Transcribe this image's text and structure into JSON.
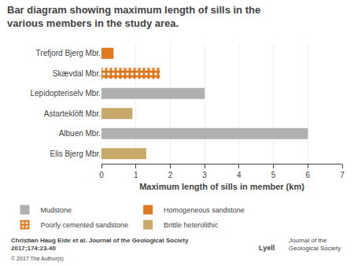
{
  "chart_data": {
    "type": "bar",
    "orientation": "horizontal",
    "title": "Bar diagram showing maximum length of sills in the various members in the study area.",
    "xlabel": "Maximum length of sills in member (km)",
    "categories": [
      "Trefjord Bjerg Mbr.",
      "Skævdal Mbr.",
      "Lepidopteriselv Mbr.",
      "Astarteklöft Mbr.",
      "Albuen Mbr.",
      "Elis Bjerg Mbr."
    ],
    "series": [
      {
        "name": "Mudstone",
        "color": "#B0B0B0",
        "values": [
          null,
          null,
          3.0,
          null,
          6.0,
          null
        ]
      },
      {
        "name": "Homogeneous sandstone",
        "color": "#E07820",
        "values": [
          0.35,
          null,
          null,
          null,
          null,
          null
        ]
      },
      {
        "name": "Poorly cemented sandstone",
        "color": "#E07820",
        "marker": "dots",
        "values": [
          null,
          1.7,
          null,
          null,
          null,
          null
        ]
      },
      {
        "name": "Brittle heterolithic",
        "color": "#C8A96A",
        "values": [
          null,
          null,
          null,
          0.9,
          null,
          1.3
        ]
      }
    ],
    "xlim": [
      0,
      7
    ],
    "xticks": [
      0,
      1,
      2,
      3,
      4,
      5,
      6,
      7
    ],
    "grid": true,
    "legend": "bottom",
    "annotations": [
      "Christian Haug Eide et al. Journal of the Geological Society\n2017;174:23-40",
      "© 2017 The Author(s)",
      "Lyell",
      "Journal of the\nGeological Society"
    ]
  }
}
